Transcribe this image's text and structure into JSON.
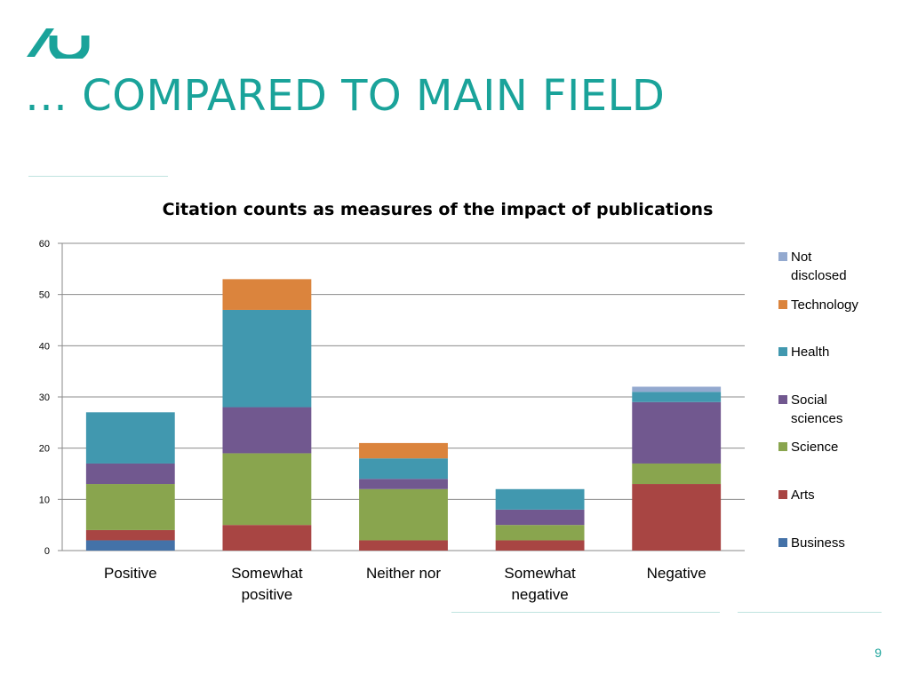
{
  "slide": {
    "title": "… COMPARED TO MAIN FIELD",
    "page_number": "9",
    "accent_color": "#1aa39a"
  },
  "chart_data": {
    "type": "bar",
    "stacked": true,
    "title": "Citation counts as measures of the impact of publications",
    "xlabel": "",
    "ylabel": "",
    "ylim": [
      0,
      60
    ],
    "yticks": [
      0,
      10,
      20,
      30,
      40,
      50,
      60
    ],
    "grid": true,
    "legend_position": "right",
    "categories": [
      "Positive",
      "Somewhat positive",
      "Neither nor",
      "Somewhat negative",
      "Negative"
    ],
    "series": [
      {
        "name": "Business",
        "color": "#4472a8",
        "values": [
          2,
          0,
          0,
          0,
          0
        ]
      },
      {
        "name": "Arts",
        "color": "#a84543",
        "values": [
          2,
          5,
          2,
          2,
          13
        ]
      },
      {
        "name": "Science",
        "color": "#89a54e",
        "values": [
          9,
          14,
          10,
          3,
          4
        ]
      },
      {
        "name": "Social sciences",
        "color": "#71588f",
        "values": [
          4,
          9,
          2,
          3,
          12
        ]
      },
      {
        "name": "Health",
        "color": "#4198af",
        "values": [
          10,
          19,
          4,
          4,
          2
        ]
      },
      {
        "name": "Technology",
        "color": "#db843d",
        "values": [
          0,
          6,
          3,
          0,
          0
        ]
      },
      {
        "name": "Not disclosed",
        "color": "#93a9cf",
        "values": [
          0,
          0,
          0,
          0,
          1
        ]
      }
    ]
  }
}
